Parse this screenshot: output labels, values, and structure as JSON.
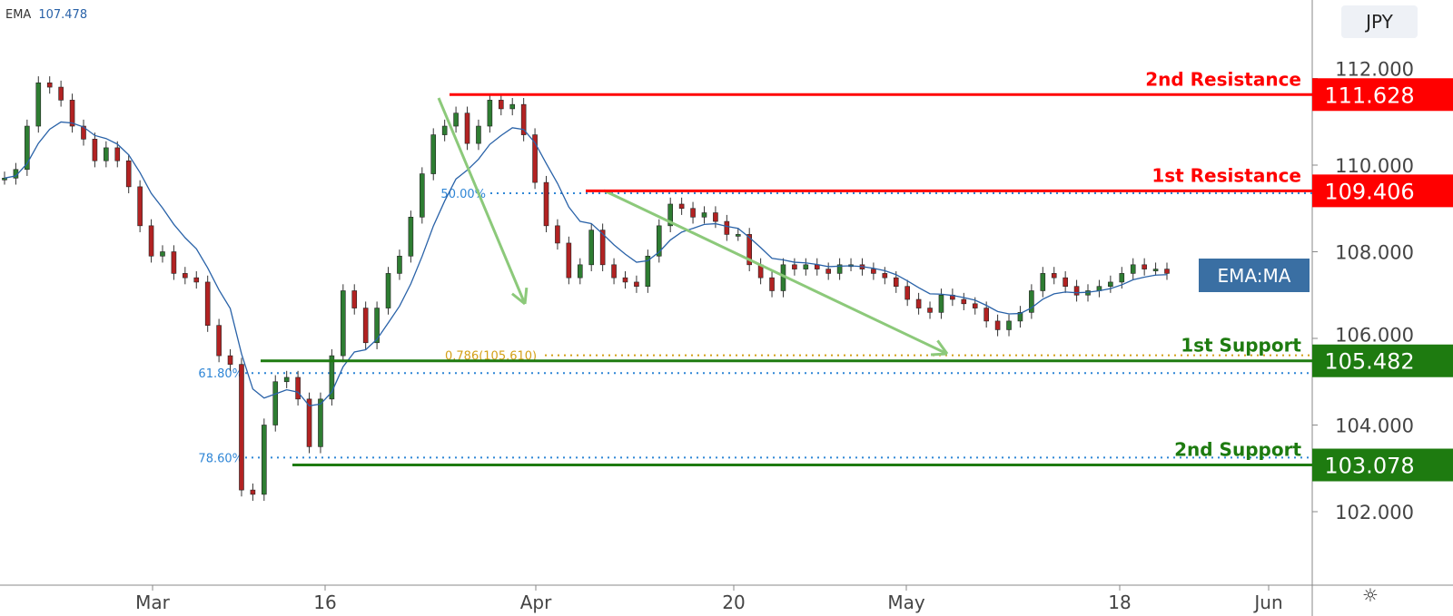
{
  "legend": {
    "name": "EMA",
    "value": "107.478"
  },
  "currency": "JPY",
  "icons": {
    "settings": "sun-icon"
  },
  "colors": {
    "resistance": "#ff0000",
    "support": "#1e7b10",
    "fib": "#2f86d6",
    "fib_ext": "#d4a017",
    "arrow": "#8cc97a",
    "ema": "#2962a8",
    "ema_label": "#3a6fa3",
    "candle_up": "#2e7d32",
    "candle_down": "#b22222"
  },
  "chart_data": {
    "type": "candlestick",
    "instrument_currency": "JPY",
    "x_tick_labels": [
      "Mar",
      "16",
      "Apr",
      "20",
      "May",
      "18",
      "Jun"
    ],
    "y_tick_labels": [
      "112.000",
      "110.000",
      "108.000",
      "106.000",
      "104.000",
      "102.000"
    ],
    "ylim": [
      100.5,
      113.6
    ],
    "closes": [
      109.7,
      109.9,
      110.9,
      111.9,
      111.8,
      111.5,
      110.9,
      110.6,
      110.1,
      110.4,
      110.1,
      109.5,
      108.6,
      107.9,
      108.0,
      107.5,
      107.4,
      107.3,
      106.3,
      105.6,
      105.4,
      102.5,
      102.4,
      104.0,
      105.0,
      105.1,
      104.6,
      103.5,
      104.6,
      105.6,
      107.1,
      106.7,
      105.9,
      106.7,
      107.5,
      107.9,
      108.8,
      109.8,
      110.7,
      110.9,
      111.2,
      110.5,
      110.9,
      111.5,
      111.3,
      111.4,
      110.7,
      109.6,
      108.6,
      108.2,
      107.4,
      107.7,
      108.5,
      107.7,
      107.4,
      107.3,
      107.2,
      107.9,
      108.6,
      109.1,
      109.0,
      108.8,
      108.9,
      108.7,
      108.4,
      108.4,
      107.7,
      107.4,
      107.1,
      107.7,
      107.6,
      107.7,
      107.6,
      107.5,
      107.7,
      107.7,
      107.6,
      107.5,
      107.4,
      107.2,
      106.9,
      106.7,
      106.6,
      107.0,
      106.9,
      106.8,
      106.7,
      106.4,
      106.2,
      106.4,
      106.6,
      107.1,
      107.5,
      107.4,
      107.2,
      107.0,
      107.1,
      107.2,
      107.3,
      107.5,
      107.7,
      107.6,
      107.6,
      107.5
    ],
    "series": [
      {
        "name": "EMA",
        "last": 107.478
      }
    ],
    "levels": [
      {
        "label": "2nd Resistance",
        "price": "111.628",
        "value": 111.628,
        "kind": "resistance"
      },
      {
        "label": "1st Resistance",
        "price": "109.406",
        "value": 109.406,
        "kind": "resistance"
      },
      {
        "label": "1st Support",
        "price": "105.482",
        "value": 105.482,
        "kind": "support"
      },
      {
        "label": "2nd Support",
        "price": "103.078",
        "value": 103.078,
        "kind": "support"
      }
    ],
    "fib_levels": [
      {
        "label": "50.00%",
        "value": 109.35
      },
      {
        "label": "61.80%",
        "value": 105.2
      },
      {
        "label": "78.60%",
        "value": 103.25
      }
    ],
    "fib_extension": {
      "label": "0.786(105.610)",
      "value": 105.61
    },
    "annotation": "EMA:MA"
  }
}
